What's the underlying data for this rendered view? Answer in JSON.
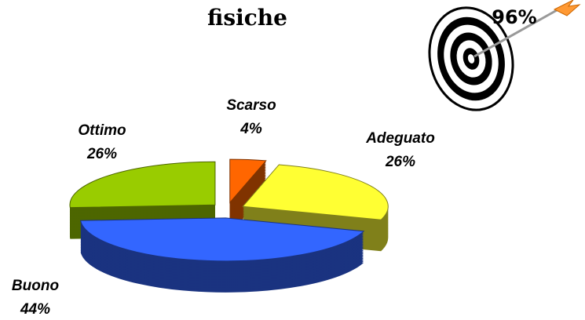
{
  "chart_data": {
    "type": "pie",
    "title": "fisiche",
    "annotation": "96%",
    "categories": [
      "Scarso",
      "Adeguato",
      "Buono",
      "Ottimo"
    ],
    "values": [
      4,
      26,
      44,
      26
    ],
    "value_labels": [
      "4%",
      "26%",
      "44%",
      "26%"
    ],
    "colors": [
      "#ff6600",
      "#ffff33",
      "#3366ff",
      "#99cc00"
    ]
  }
}
